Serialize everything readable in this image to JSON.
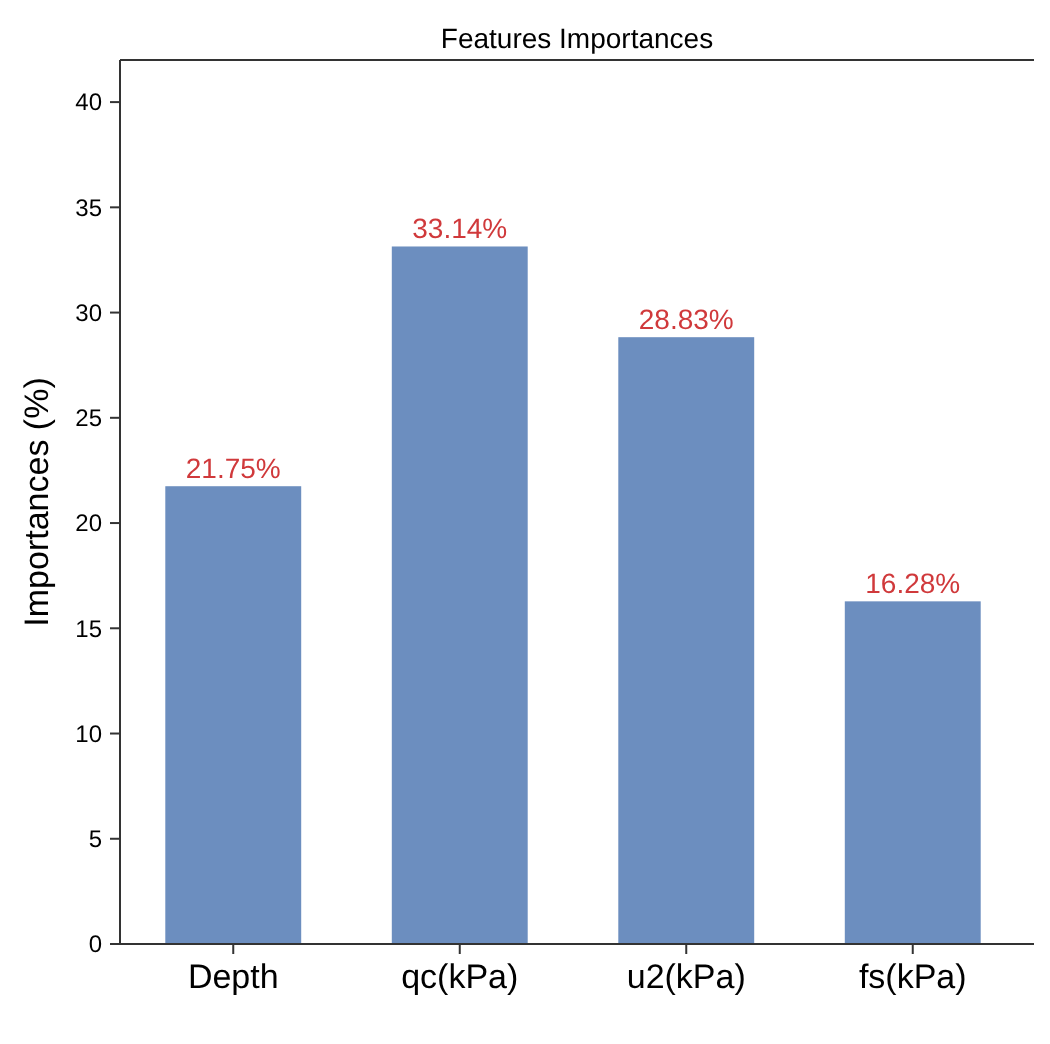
{
  "chart_data": {
    "type": "bar",
    "title": "Features Importances",
    "ylabel": "Importances (%)",
    "categories": [
      "Depth",
      "qc(kPa)",
      "u2(kPa)",
      "fs(kPa)"
    ],
    "values": [
      21.75,
      33.14,
      28.83,
      16.28
    ],
    "value_labels": [
      "21.75%",
      "33.14%",
      "28.83%",
      "16.28%"
    ],
    "color": "#6c8ebf",
    "ylim": [
      0,
      42
    ],
    "yticks": [
      0,
      5,
      10,
      15,
      20,
      25,
      30,
      35,
      40
    ],
    "grid": false
  }
}
